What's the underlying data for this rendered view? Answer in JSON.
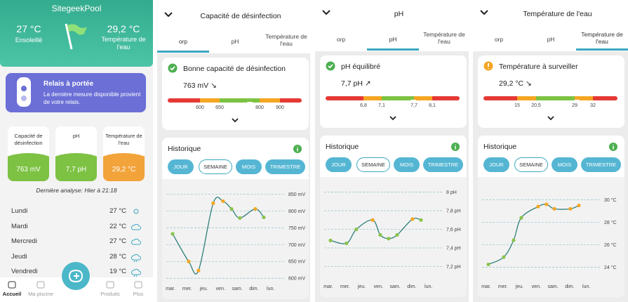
{
  "home": {
    "app_name": "SitegeekPool",
    "weather": {
      "temp": "27 °C",
      "label": "Ensoleillé"
    },
    "water": {
      "temp": "29,2 °C",
      "label": "Température de l'eau"
    },
    "relay": {
      "title": "Relais à portée",
      "text": "La dernière mesure disponible provient de votre relais."
    },
    "gauges": [
      {
        "label": "Capacité de désinfection",
        "value": "763 mV",
        "color": "#7dc243"
      },
      {
        "label": "pH",
        "value": "7,7 pH",
        "color": "#7dc243"
      },
      {
        "label": "Température de l'eau",
        "value": "29,2 °C",
        "color": "#f2a33a"
      }
    ],
    "last_analysis": "Dernière analyse: Hier à 21:18",
    "forecast": [
      {
        "day": "Lundi",
        "temp": "27 °C"
      },
      {
        "day": "Mardi",
        "temp": "22 °C"
      },
      {
        "day": "Mercredi",
        "temp": "27 °C"
      },
      {
        "day": "Jeudi",
        "temp": "28 °C"
      },
      {
        "day": "Vendredi",
        "temp": "19 °C"
      }
    ],
    "nav": [
      "Accueil",
      "Ma piscine",
      "Produits",
      "Plus"
    ]
  },
  "details": [
    {
      "title": "Capacité de désinfection",
      "tabs": [
        "orp",
        "pH",
        "Température de l'eau"
      ],
      "active_tab": 0,
      "status": "Bonne capacité de désinfection",
      "status_color": "#4caf50",
      "value": "763 mV ↘",
      "scale": [
        "600",
        "650",
        "800",
        "900"
      ],
      "history": "Historique",
      "periods": [
        "JOUR",
        "SEMAINE",
        "MOIS",
        "TRIMESTRE"
      ],
      "selected_period": 1,
      "chart": {
        "type": "line",
        "color": "#2f7f7a",
        "x": [
          0.13,
          1.09,
          1.68,
          2.56,
          3.15,
          3.66,
          4.16,
          5.08,
          5.59
        ],
        "values": [
          732,
          650,
          623,
          823,
          829,
          806,
          779,
          806,
          781
        ],
        "point_colors": [
          "#8bc34a",
          "#f5a623",
          "#f5a623",
          "#f5a623",
          "#f5a623",
          "#8bc34a",
          "#8bc34a",
          "#f5a623",
          "#8bc34a"
        ],
        "xlim": [
          -0.5,
          7.5
        ],
        "xticks": [
          {
            "value": 0,
            "label": "mar."
          },
          {
            "value": 1,
            "label": "mer."
          },
          {
            "value": 2,
            "label": "jeu."
          },
          {
            "value": 3,
            "label": "ven."
          },
          {
            "value": 4,
            "label": "sam."
          },
          {
            "value": 5,
            "label": "dim."
          },
          {
            "value": 6,
            "label": "lun."
          }
        ],
        "ylim": [
          590,
          880
        ],
        "yticks": [
          {
            "value": 600,
            "label": "600 mV"
          },
          {
            "value": 650,
            "label": "650 mV"
          },
          {
            "value": 700,
            "label": "700 mV"
          },
          {
            "value": 750,
            "label": "750 mV"
          },
          {
            "value": 800,
            "label": "800 mV"
          },
          {
            "value": 850,
            "label": "850 mV"
          }
        ]
      }
    },
    {
      "title": "pH",
      "tabs": [
        "orp",
        "pH",
        "Température de l'eau"
      ],
      "active_tab": 1,
      "status": "pH équilibré",
      "status_color": "#4caf50",
      "value": "7,7 pH ↗",
      "scale": [
        "6,8",
        "7,1",
        "7,7",
        "8,1"
      ],
      "history": "Historique",
      "periods": [
        "JOUR",
        "SEMAINE",
        "MOIS",
        "TRIMESTRE"
      ],
      "selected_period": 1,
      "chart": {
        "type": "line",
        "color": "#2f7f7a",
        "x": [
          0.13,
          1.09,
          1.68,
          2.65,
          3.11,
          3.61,
          4.12,
          5.04,
          5.55
        ],
        "values": [
          7.48,
          7.45,
          7.6,
          7.7,
          7.54,
          7.5,
          7.54,
          7.71,
          7.7
        ],
        "point_colors": [
          "#8bc34a",
          "#8bc34a",
          "#8bc34a",
          "#f5a623",
          "#8bc34a",
          "#8bc34a",
          "#8bc34a",
          "#f5a623",
          "#8bc34a"
        ],
        "xlim": [
          -0.5,
          7.5
        ],
        "xticks": [
          {
            "value": 0,
            "label": "mar."
          },
          {
            "value": 1,
            "label": "mer."
          },
          {
            "value": 2,
            "label": "jeu."
          },
          {
            "value": 3,
            "label": "ven."
          },
          {
            "value": 4,
            "label": "sam."
          },
          {
            "value": 5,
            "label": "dim."
          },
          {
            "value": 6,
            "label": "lun."
          }
        ],
        "ylim": [
          7.06,
          8.11
        ],
        "yticks": [
          {
            "value": 7.2,
            "label": "7,2 pH"
          },
          {
            "value": 7.4,
            "label": "7,4 pH"
          },
          {
            "value": 7.6,
            "label": "7,6 pH"
          },
          {
            "value": 7.8,
            "label": "7,8 pH"
          },
          {
            "value": 8,
            "label": "8 pH"
          }
        ]
      }
    },
    {
      "title": "Température de l'eau",
      "tabs": [
        "orp",
        "pH",
        "Température de l'eau"
      ],
      "active_tab": 2,
      "status": "Température à surveiller",
      "status_color": "#f5a623",
      "value": "29,2 °C ↘",
      "scale": [
        "15",
        "20,5",
        "29",
        "32"
      ],
      "history": "Historique",
      "periods": [
        "JOUR",
        "SEMAINE",
        "MOIS",
        "TRIMESTRE"
      ],
      "selected_period": 1,
      "chart": {
        "type": "line",
        "color": "#2f7f7a",
        "x": [
          0.13,
          1.05,
          1.64,
          2.1,
          3.11,
          3.61,
          4.08,
          5.04,
          5.55
        ],
        "values": [
          24.25,
          24.9,
          26.4,
          28.4,
          29.4,
          29.6,
          29.2,
          29.2,
          29.5
        ],
        "point_colors": [
          "#8bc34a",
          "#8bc34a",
          "#8bc34a",
          "#8bc34a",
          "#f5a623",
          "#f5a623",
          "#f5a623",
          "#f5a623",
          "#f5a623"
        ],
        "xlim": [
          -0.5,
          7.5
        ],
        "xticks": [
          {
            "value": 0,
            "label": "mar."
          },
          {
            "value": 1,
            "label": "mer."
          },
          {
            "value": 2,
            "label": "jeu."
          },
          {
            "value": 3,
            "label": "ven."
          },
          {
            "value": 4,
            "label": "sam."
          },
          {
            "value": 5,
            "label": "dim."
          },
          {
            "value": 6,
            "label": "lun."
          }
        ],
        "ylim": [
          22.9,
          31.6
        ],
        "yticks": [
          {
            "value": 24,
            "label": "24 °C"
          },
          {
            "value": 26,
            "label": "26 °C"
          },
          {
            "value": 28,
            "label": "28 °C"
          },
          {
            "value": 30,
            "label": "30 °C"
          }
        ]
      }
    }
  ]
}
